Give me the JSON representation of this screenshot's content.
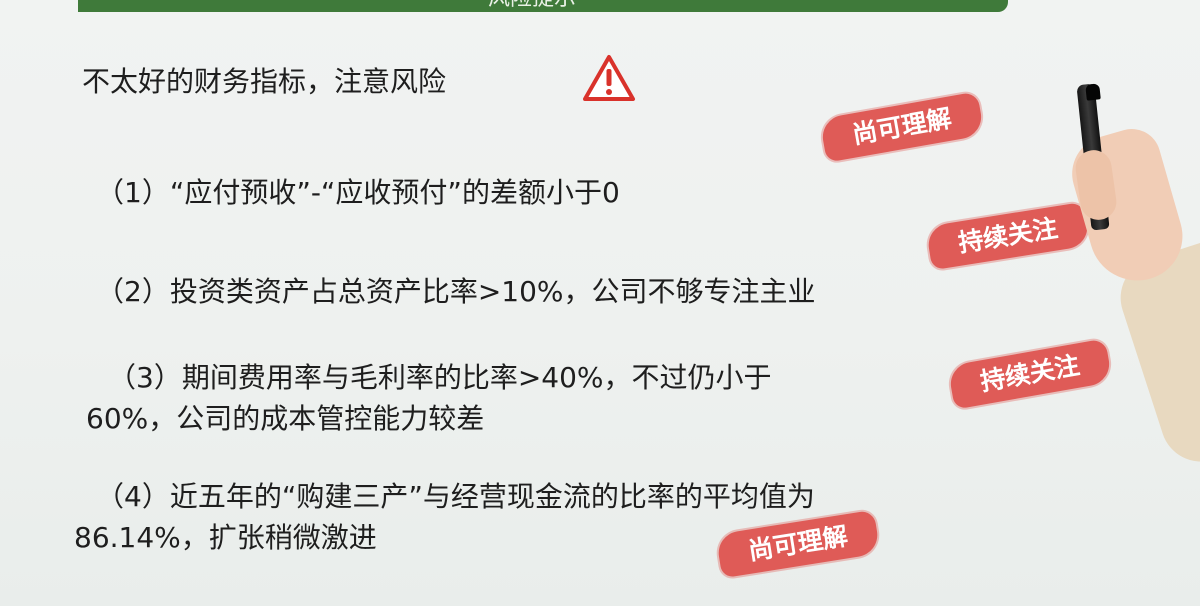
{
  "header": {
    "title": "风险提示"
  },
  "headline": {
    "text": "不太好的财务指标，注意风险"
  },
  "items": [
    {
      "line1": "（1）“应付预收”-“应收预付”的差额小于0"
    },
    {
      "line1": "（2）投资类资产占总资产比率>10%，公司不够专注主业"
    },
    {
      "line1": "（3）期间费用率与毛利率的比率>40%，不过仍小于",
      "line2": "60%，公司的成本管控能力较差"
    },
    {
      "line1": "（4）近五年的“购建三产”与经营现金流的比率的平均值为",
      "line2": "86.14%，扩张稍微激进"
    }
  ],
  "stamps": [
    {
      "text": "尚可理解"
    },
    {
      "text": "持续关注"
    },
    {
      "text": "持续关注"
    },
    {
      "text": "尚可理解"
    }
  ],
  "colors": {
    "header_green": "#3f7a3a",
    "stamp_red": "#df5b57",
    "warning_red": "#d9322b"
  },
  "icons": {
    "warning": "warning-triangle-icon"
  }
}
